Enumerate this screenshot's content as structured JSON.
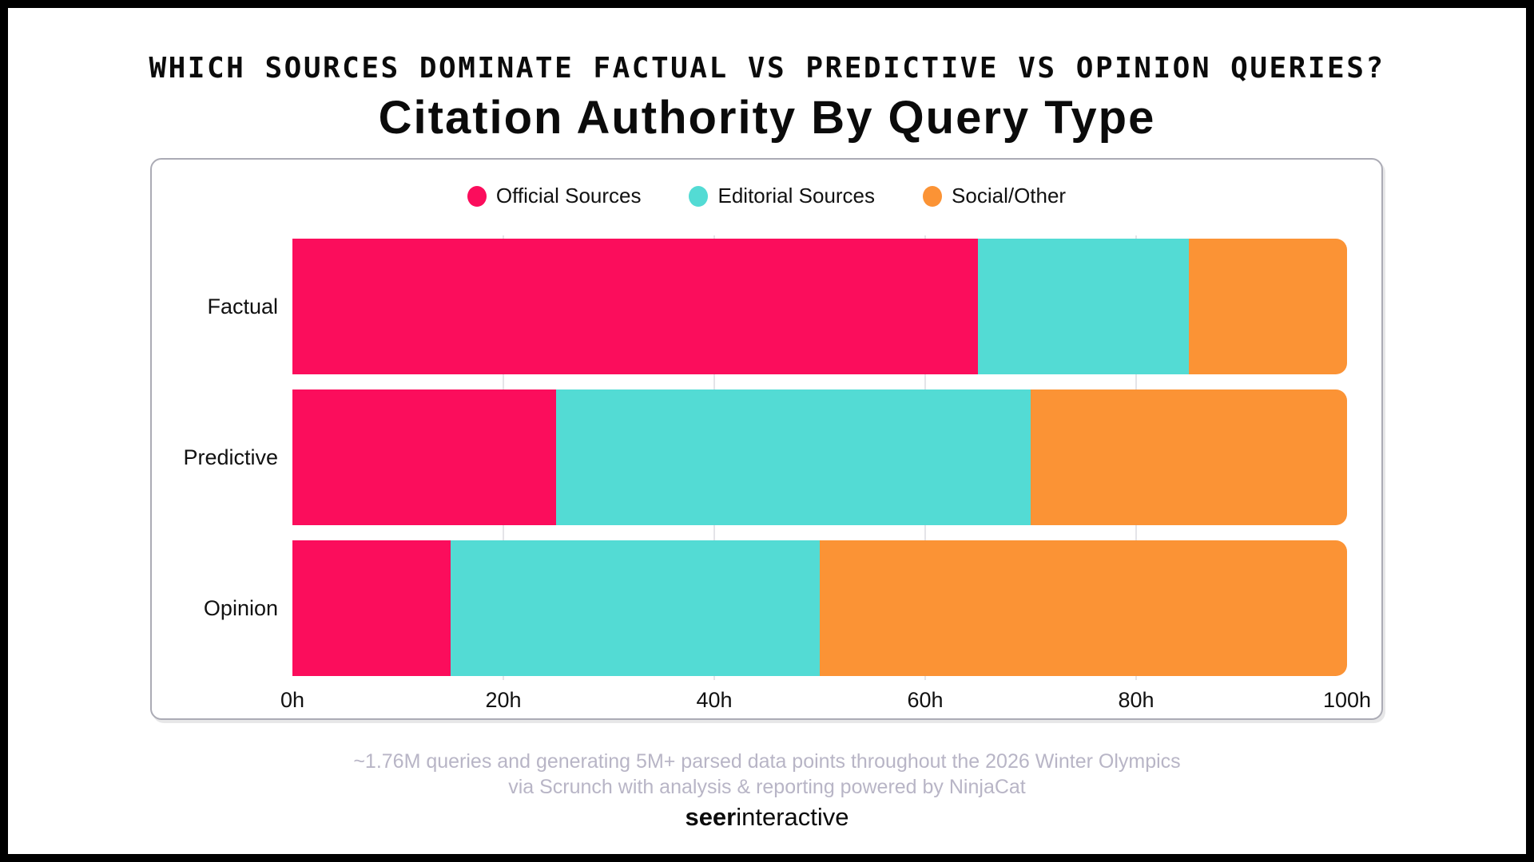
{
  "header": {
    "kicker": "WHICH SOURCES DOMINATE FACTUAL VS PREDICTIVE VS OPINION QUERIES?",
    "title": "Citation Authority By Query Type"
  },
  "chart_data": {
    "type": "bar",
    "stacked": true,
    "orientation": "horizontal",
    "title": "Citation Authority By Query Type",
    "categories": [
      "Factual",
      "Predictive",
      "Opinion"
    ],
    "series": [
      {
        "name": "Official Sources",
        "color": "#FB0D5C",
        "values": [
          65,
          25,
          15
        ]
      },
      {
        "name": "Editorial Sources",
        "color": "#53DBD4",
        "values": [
          20,
          45,
          35
        ]
      },
      {
        "name": "Social/Other",
        "color": "#FB9335",
        "values": [
          15,
          30,
          50
        ]
      }
    ],
    "x_ticks": [
      {
        "value": 0,
        "label": "0h"
      },
      {
        "value": 20,
        "label": "20h"
      },
      {
        "value": 40,
        "label": "40h"
      },
      {
        "value": 60,
        "label": "60h"
      },
      {
        "value": 80,
        "label": "80h"
      },
      {
        "value": 100,
        "label": "100h"
      }
    ],
    "xlim": [
      0,
      100
    ],
    "legend_position": "top",
    "grid": "vertical"
  },
  "footer": {
    "note_line1": "~1.76M queries and generating 5M+ parsed data points throughout the 2026 Winter Olympics",
    "note_line2": "via Scrunch with analysis & reporting powered by NinjaCat",
    "logo_bold": "seer",
    "logo_regular": "interactive"
  },
  "colors": {
    "frame_border": "#000000",
    "card_border": "#ababb5",
    "gridline": "#e4e4e8",
    "note_text": "#b8b5c6",
    "text": "#0b0b0b"
  }
}
